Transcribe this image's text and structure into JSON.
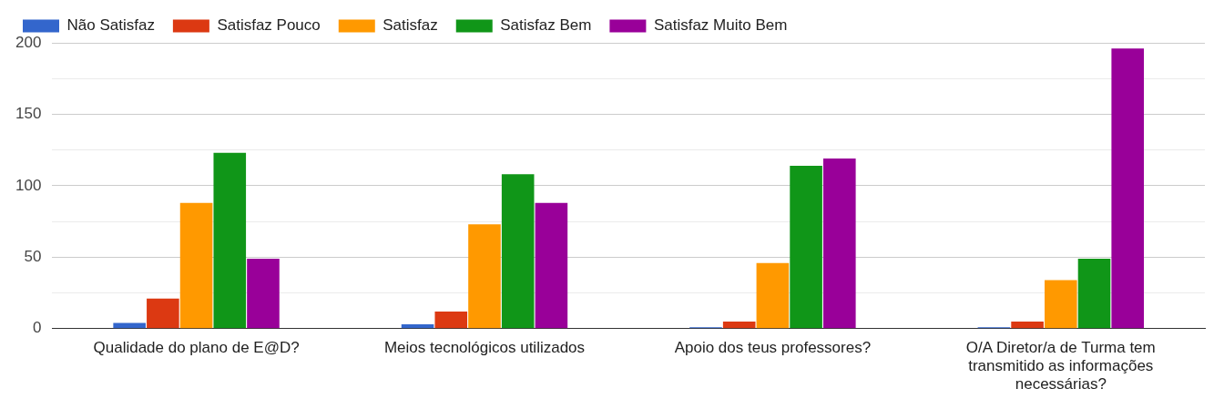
{
  "chart_data": {
    "type": "bar",
    "categories": [
      "Qualidade do plano de E@D?",
      "Meios tecnológicos utilizados",
      "Apoio dos teus professores?",
      "O/A Diretor/a de Turma tem transmitido as informações necessárias?"
    ],
    "series": [
      {
        "name": "Não Satisfaz",
        "color": "#3366cc",
        "values": [
          4,
          3,
          1,
          1
        ]
      },
      {
        "name": "Satisfaz Pouco",
        "color": "#dc3912",
        "values": [
          21,
          12,
          5,
          5
        ]
      },
      {
        "name": "Satisfaz",
        "color": "#ff9900",
        "values": [
          88,
          73,
          46,
          34
        ]
      },
      {
        "name": "Satisfaz Bem",
        "color": "#109618",
        "values": [
          123,
          108,
          114,
          49
        ]
      },
      {
        "name": "Satisfaz Muito Bem",
        "color": "#990099",
        "values": [
          49,
          88,
          119,
          196
        ]
      }
    ],
    "ylim": [
      0,
      200
    ],
    "yticks": [
      0,
      {
        "value": 25,
        "label": null
      },
      50,
      {
        "value": 75,
        "label": null
      },
      100,
      {
        "value": 125,
        "label": null
      },
      150,
      {
        "value": 175,
        "label": null
      },
      200
    ],
    "grid": true,
    "legend": "top"
  }
}
